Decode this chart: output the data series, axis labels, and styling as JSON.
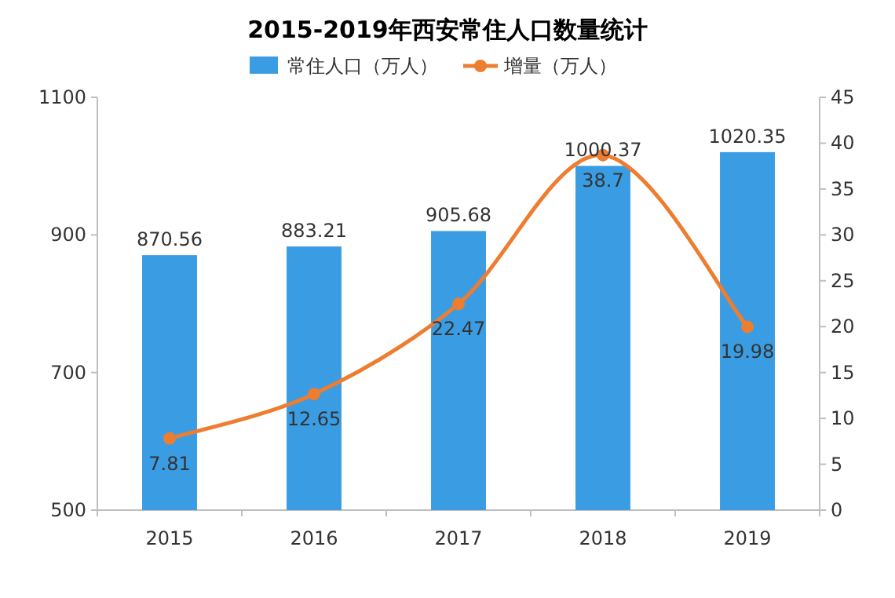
{
  "chart_data": {
    "type": "bar",
    "title": "2015-2019年西安常住人口数量统计",
    "categories": [
      "2015",
      "2016",
      "2017",
      "2018",
      "2019"
    ],
    "series": [
      {
        "name": "常住人口（万人）",
        "color": "#3a9de3",
        "values": [
          870.56,
          883.21,
          905.68,
          1000.37,
          1020.35
        ]
      },
      {
        "name": "增量（万人）",
        "type": "line",
        "axis": "y2",
        "color": "#ed7d31",
        "values": [
          7.81,
          12.65,
          22.47,
          38.7,
          19.98
        ]
      }
    ],
    "ylim": [
      500,
      1100
    ],
    "yticks": [
      500,
      700,
      900,
      1100
    ],
    "y2lim": [
      0,
      45
    ],
    "y2ticks": [
      0,
      5,
      10,
      15,
      20,
      25,
      30,
      35,
      40,
      45
    ],
    "marker": "circle",
    "data_labels": true,
    "legend": "top"
  }
}
